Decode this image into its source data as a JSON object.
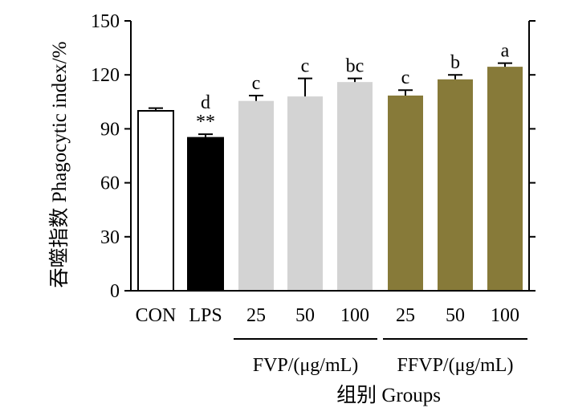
{
  "chart_data": {
    "type": "bar",
    "ylabel": "吞噬指数 Phagocytic index/%",
    "xlabel": "组别 Groups",
    "ylim": [
      0,
      150
    ],
    "yticks": [
      0,
      30,
      60,
      90,
      120,
      150
    ],
    "categories": [
      "CON",
      "LPS",
      "25",
      "50",
      "100",
      "25",
      "50",
      "100"
    ],
    "values": [
      100,
      85,
      105.5,
      108,
      116,
      108.5,
      117.5,
      124.5
    ],
    "errors": [
      1.5,
      2,
      3,
      10,
      2,
      3,
      2.5,
      2
    ],
    "significance": [
      "",
      "d\n**",
      "c",
      "c",
      "bc",
      "c",
      "b",
      "a"
    ],
    "bar_fills": [
      "#ffffff",
      "#000000",
      "#d3d3d3",
      "#d3d3d3",
      "#d3d3d3",
      "#877a39",
      "#877a39",
      "#877a39"
    ],
    "groups": [
      {
        "label": "FVP/(μg/mL)",
        "categories": [
          "25",
          "50",
          "100"
        ]
      },
      {
        "label": "FFVP/(μg/mL)",
        "categories": [
          "25",
          "50",
          "100"
        ]
      }
    ],
    "grid": false,
    "legend": "none"
  }
}
